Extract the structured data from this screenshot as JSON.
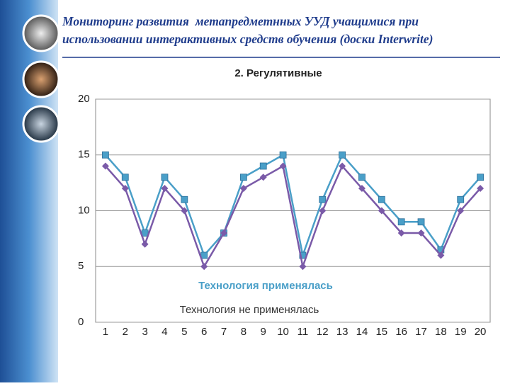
{
  "header": {
    "title": "Мониторинг развития  метапредметнных УУД учащимися при использовании интерактивных средств обучения (доски Interwrite)"
  },
  "chart_data": {
    "type": "line",
    "title": "2. Регулятивные",
    "categories": [
      "1",
      "2",
      "3",
      "4",
      "5",
      "6",
      "7",
      "8",
      "9",
      "10",
      "11",
      "12",
      "13",
      "14",
      "15",
      "16",
      "17",
      "18",
      "19",
      "20"
    ],
    "series": [
      {
        "name": "Технология применялась",
        "color": "#4a9fc8",
        "values": [
          15,
          13,
          8,
          13,
          11,
          6,
          8,
          13,
          14,
          15,
          6,
          11,
          15,
          13,
          11,
          9,
          9,
          6.5,
          11,
          13
        ]
      },
      {
        "name": "Технология не применялась",
        "color": "#7a5aa8",
        "values": [
          14,
          12,
          7,
          12,
          10,
          5,
          8,
          12,
          13,
          14,
          5,
          10,
          14,
          12,
          10,
          8,
          8,
          6,
          10,
          12
        ]
      }
    ],
    "ylim": [
      0,
      20
    ],
    "yticks": [
      0,
      5,
      10,
      15,
      20
    ],
    "grid": true
  }
}
